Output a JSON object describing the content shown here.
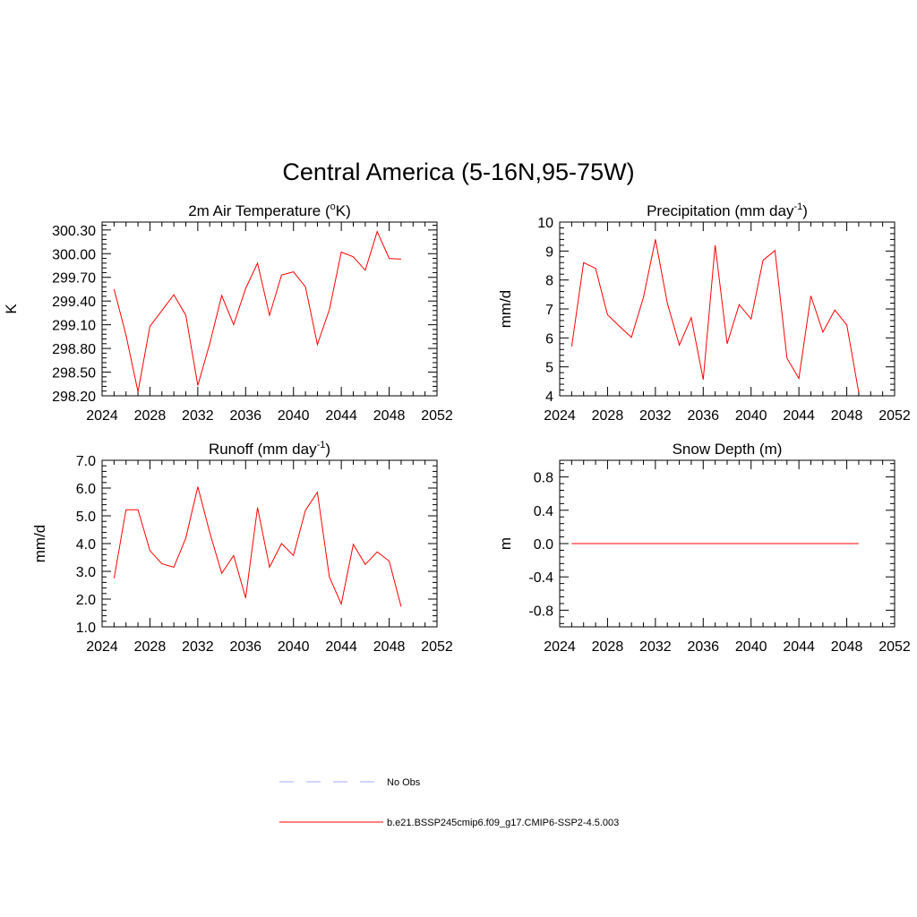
{
  "figure_title": "Central America (5-16N,95-75W)",
  "colors": {
    "model": "#ff0000",
    "obs": "#aaaaff",
    "axis": "#000000"
  },
  "legend": [
    {
      "label": "No Obs",
      "style": "dashed",
      "color": "#aaaaff"
    },
    {
      "label": "b.e21.BSSP245cmip6.f09_g17.CMIP6-SSP2-4.5.003",
      "style": "solid",
      "color": "#ff0000"
    }
  ],
  "chart_data": [
    {
      "type": "line",
      "title": "2m Air Temperature (°K)",
      "title_base": "2m Air Temperature (",
      "title_sup": "o",
      "title_tail": "K)",
      "ylabel": "K",
      "xlim": [
        2024,
        2052
      ],
      "ylim": [
        298.2,
        300.4
      ],
      "xticks": [
        "2024",
        "2028",
        "2032",
        "2036",
        "2040",
        "2044",
        "2048",
        "2052"
      ],
      "yticks": [
        "298.20",
        "298.50",
        "298.80",
        "299.10",
        "299.40",
        "299.70",
        "300.00",
        "300.30"
      ],
      "x": [
        2025,
        2026,
        2027,
        2028,
        2029,
        2030,
        2031,
        2032,
        2033,
        2034,
        2035,
        2036,
        2037,
        2038,
        2039,
        2040,
        2041,
        2042,
        2043,
        2044,
        2045,
        2046,
        2047,
        2048,
        2049
      ],
      "series": [
        {
          "name": "b.e21.BSSP245cmip6.f09_g17.CMIP6-SSP2-4.5.003",
          "values": [
            299.55,
            298.97,
            298.25,
            299.08,
            299.28,
            299.48,
            299.22,
            298.33,
            298.86,
            299.47,
            299.1,
            299.56,
            299.88,
            299.22,
            299.73,
            299.77,
            299.58,
            298.85,
            299.29,
            300.02,
            299.96,
            299.79,
            300.28,
            299.94,
            299.93
          ]
        }
      ]
    },
    {
      "type": "line",
      "title": "Precipitation (mm day-1)",
      "title_base": "Precipitation (mm day",
      "title_sup": "-1",
      "title_tail": ")",
      "ylabel": "mm/d",
      "xlim": [
        2024,
        2052
      ],
      "ylim": [
        4,
        10
      ],
      "xticks": [
        "2024",
        "2028",
        "2032",
        "2036",
        "2040",
        "2044",
        "2048",
        "2052"
      ],
      "yticks": [
        "4",
        "5",
        "6",
        "7",
        "8",
        "9",
        "10"
      ],
      "x": [
        2025,
        2026,
        2027,
        2028,
        2029,
        2030,
        2031,
        2032,
        2033,
        2034,
        2035,
        2036,
        2037,
        2038,
        2039,
        2040,
        2041,
        2042,
        2043,
        2044,
        2045,
        2046,
        2047,
        2048,
        2049
      ],
      "series": [
        {
          "name": "b.e21.BSSP245cmip6.f09_g17.CMIP6-SSP2-4.5.003",
          "values": [
            5.7,
            8.6,
            8.4,
            6.8,
            6.4,
            6.02,
            7.4,
            9.4,
            7.2,
            5.75,
            6.7,
            4.56,
            9.2,
            5.8,
            7.15,
            6.65,
            8.68,
            9.02,
            5.3,
            4.6,
            7.45,
            6.2,
            6.96,
            6.45,
            4.12
          ]
        }
      ]
    },
    {
      "type": "line",
      "title": "Runoff (mm day-1)",
      "title_base": "Runoff (mm day",
      "title_sup": "-1",
      "title_tail": ")",
      "ylabel": "mm/d",
      "xlim": [
        2024,
        2052
      ],
      "ylim": [
        1.0,
        7.0
      ],
      "xticks": [
        "2024",
        "2028",
        "2032",
        "2036",
        "2040",
        "2044",
        "2048",
        "2052"
      ],
      "yticks": [
        "1.0",
        "2.0",
        "3.0",
        "4.0",
        "5.0",
        "6.0",
        "7.0"
      ],
      "x": [
        2025,
        2026,
        2027,
        2028,
        2029,
        2030,
        2031,
        2032,
        2033,
        2034,
        2035,
        2036,
        2037,
        2038,
        2039,
        2040,
        2041,
        2042,
        2043,
        2044,
        2045,
        2046,
        2047,
        2048,
        2049
      ],
      "series": [
        {
          "name": "b.e21.BSSP245cmip6.f09_g17.CMIP6-SSP2-4.5.003",
          "values": [
            2.75,
            5.22,
            5.22,
            3.75,
            3.27,
            3.15,
            4.2,
            6.05,
            4.4,
            2.93,
            3.57,
            2.04,
            5.3,
            3.15,
            4.0,
            3.57,
            5.2,
            5.85,
            2.8,
            1.82,
            3.97,
            3.25,
            3.7,
            3.37,
            1.73
          ]
        }
      ]
    },
    {
      "type": "line",
      "title": "Snow Depth (m)",
      "title_base": "Snow Depth (m)",
      "title_sup": "",
      "title_tail": "",
      "ylabel": "m",
      "xlim": [
        2024,
        2052
      ],
      "ylim": [
        -1.0,
        1.0
      ],
      "xticks": [
        "2024",
        "2028",
        "2032",
        "2036",
        "2040",
        "2044",
        "2048",
        "2052"
      ],
      "yticks": [
        "-0.8",
        "-0.4",
        "0.0",
        "0.4",
        "0.8"
      ],
      "ytick_values": [
        -0.8,
        -0.4,
        0.0,
        0.4,
        0.8
      ],
      "x": [
        2025,
        2026,
        2027,
        2028,
        2029,
        2030,
        2031,
        2032,
        2033,
        2034,
        2035,
        2036,
        2037,
        2038,
        2039,
        2040,
        2041,
        2042,
        2043,
        2044,
        2045,
        2046,
        2047,
        2048,
        2049
      ],
      "series": [
        {
          "name": "b.e21.BSSP245cmip6.f09_g17.CMIP6-SSP2-4.5.003",
          "values": [
            0,
            0,
            0,
            0,
            0,
            0,
            0,
            0,
            0,
            0,
            0,
            0,
            0,
            0,
            0,
            0,
            0,
            0,
            0,
            0,
            0,
            0,
            0,
            0,
            0
          ]
        }
      ]
    }
  ]
}
